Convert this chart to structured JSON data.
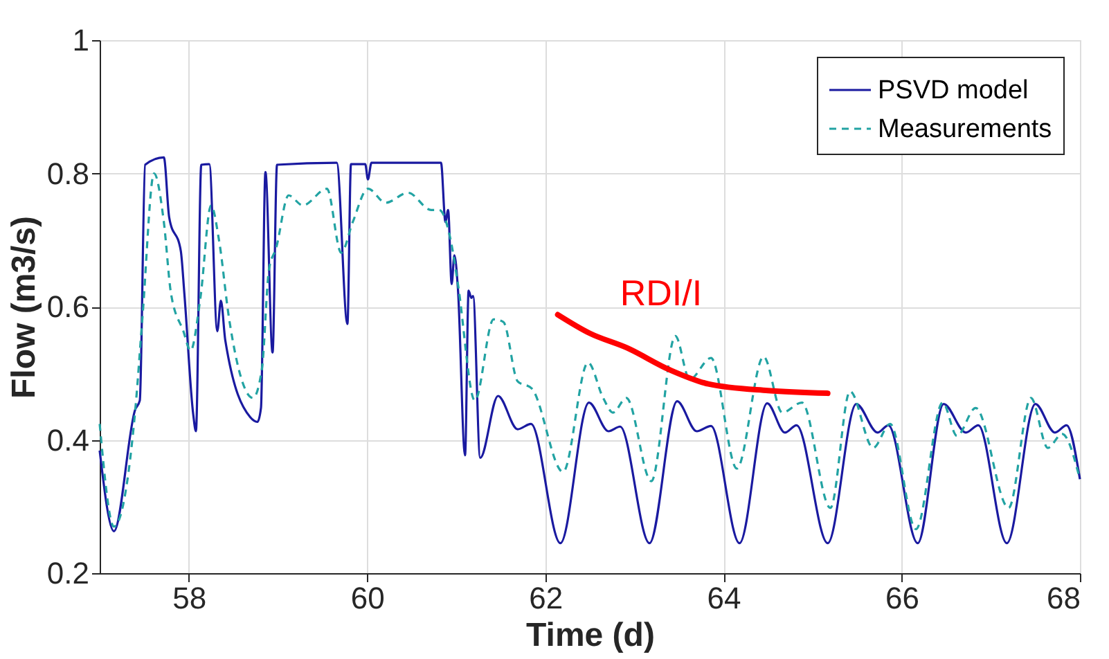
{
  "chart_data": {
    "type": "line",
    "xlabel": "Time (d)",
    "ylabel": "Flow (m3/s)",
    "xlim": [
      57,
      68
    ],
    "xticks": [
      58,
      60,
      62,
      64,
      66,
      68
    ],
    "ylim": [
      0.2,
      1
    ],
    "yticks": [
      0.2,
      0.4,
      0.6,
      0.8,
      1
    ],
    "grid": true,
    "legend": "top right",
    "annotations": [
      "RDI/I"
    ],
    "series": [
      {
        "name": "PSVD model",
        "color": "#1a1aa0",
        "line_style": "solid",
        "x": [
          57,
          57.16,
          57.4,
          57.45,
          57.51,
          57.72,
          57.78,
          57.91,
          57.95,
          58.05,
          58.08,
          58.14,
          58.23,
          58.32,
          58.36,
          58.41,
          58.69,
          58.77,
          58.81,
          58.86,
          58.94,
          58.99,
          59.66,
          59.78,
          59.82,
          59.98,
          60.01,
          60.05,
          60.62,
          60.83,
          60.88,
          60.91,
          60.95,
          60.98,
          61.02,
          61.1,
          61.14,
          61.17,
          61.19,
          61.27,
          61.47,
          61.69,
          61.84,
          62.17,
          62.49,
          62.71,
          62.84,
          63.17,
          63.48,
          63.7,
          63.86,
          64.18,
          64.49,
          64.69,
          64.82,
          65.17,
          65.49,
          65.73,
          65.85,
          66.18,
          66.47,
          66.72,
          66.86,
          67.18,
          67.5,
          67.72,
          67.85,
          68
        ],
        "values": [
          0.384,
          0.263,
          0.446,
          0.459,
          0.813,
          0.824,
          0.734,
          0.684,
          0.62,
          0.438,
          0.413,
          0.813,
          0.814,
          0.563,
          0.609,
          0.549,
          0.434,
          0.427,
          0.448,
          0.802,
          0.531,
          0.813,
          0.816,
          0.574,
          0.814,
          0.814,
          0.791,
          0.816,
          0.816,
          0.816,
          0.727,
          0.745,
          0.634,
          0.677,
          0.627,
          0.377,
          0.624,
          0.613,
          0.616,
          0.373,
          0.466,
          0.416,
          0.424,
          0.245,
          0.456,
          0.413,
          0.42,
          0.245,
          0.458,
          0.413,
          0.421,
          0.245,
          0.455,
          0.411,
          0.422,
          0.245,
          0.454,
          0.411,
          0.422,
          0.245,
          0.454,
          0.411,
          0.422,
          0.245,
          0.454,
          0.411,
          0.422,
          0.341
        ]
      },
      {
        "name": "Measurements",
        "color": "#22a3a3",
        "line_style": "dashed",
        "x": [
          57,
          57.16,
          57.4,
          57.48,
          57.61,
          57.72,
          57.8,
          57.94,
          58.02,
          58.13,
          58.25,
          58.34,
          58.45,
          58.72,
          58.82,
          58.9,
          58.98,
          59.12,
          59.28,
          59.55,
          59.71,
          59.84,
          60.01,
          60.21,
          60.46,
          60.72,
          60.81,
          60.94,
          61.02,
          61.21,
          61.42,
          61.53,
          61.69,
          61.85,
          62.2,
          62.48,
          62.65,
          62.76,
          62.91,
          63.19,
          63.46,
          63.62,
          63.86,
          64.15,
          64.45,
          64.66,
          64.88,
          65.2,
          65.42,
          65.68,
          65.87,
          66.16,
          66.46,
          66.62,
          66.83,
          67.2,
          67.45,
          67.64,
          67.8,
          68
        ],
        "values": [
          0.424,
          0.27,
          0.446,
          0.584,
          0.8,
          0.727,
          0.62,
          0.563,
          0.534,
          0.613,
          0.752,
          0.699,
          0.584,
          0.463,
          0.506,
          0.656,
          0.688,
          0.767,
          0.752,
          0.777,
          0.681,
          0.727,
          0.777,
          0.756,
          0.771,
          0.745,
          0.745,
          0.699,
          0.634,
          0.459,
          0.581,
          0.577,
          0.488,
          0.477,
          0.352,
          0.516,
          0.463,
          0.441,
          0.463,
          0.338,
          0.556,
          0.491,
          0.523,
          0.357,
          0.525,
          0.441,
          0.456,
          0.298,
          0.473,
          0.388,
          0.424,
          0.266,
          0.456,
          0.406,
          0.448,
          0.298,
          0.463,
          0.388,
          0.409,
          0.341
        ]
      },
      {
        "color": "#ff0000",
        "line_style": "solid",
        "x": [
          62.14,
          62.5,
          62.92,
          63.4,
          63.83,
          64.5,
          65.17
        ],
        "values": [
          0.588,
          0.56,
          0.538,
          0.505,
          0.484,
          0.474,
          0.47
        ]
      }
    ]
  }
}
